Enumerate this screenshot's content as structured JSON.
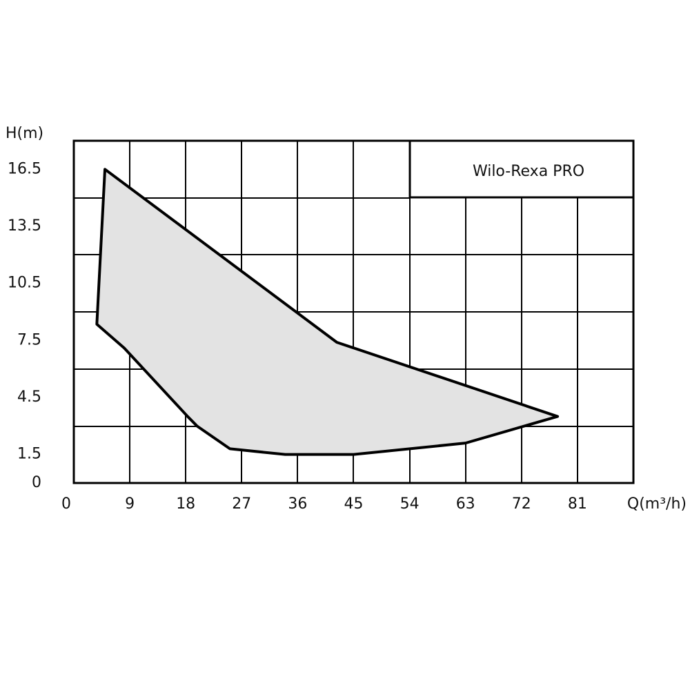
{
  "chart_data": {
    "type": "area",
    "annotation": "Wilo-Rexa PRO",
    "y_label": "H(m)",
    "x_label": "Q(m³/h)",
    "x": [
      5.0,
      42.3,
      77.8,
      63,
      45,
      34,
      25.1,
      19.8,
      18.3,
      8.1,
      3.7
    ],
    "values": [
      16.5,
      7.4,
      3.5,
      2.1,
      1.5,
      1.5,
      1.8,
      3.0,
      3.5,
      7.1,
      8.35
    ],
    "color": "#e3e3e3",
    "line_color": "#000000",
    "xlim": [
      0,
      90
    ],
    "xticks": [
      0,
      9,
      18,
      27,
      36,
      45,
      54,
      63,
      72,
      81
    ],
    "ylim": [
      0,
      18
    ],
    "yticks": [
      0,
      1.5,
      4.5,
      7.5,
      10.5,
      13.5,
      16.5
    ],
    "grid": true
  }
}
